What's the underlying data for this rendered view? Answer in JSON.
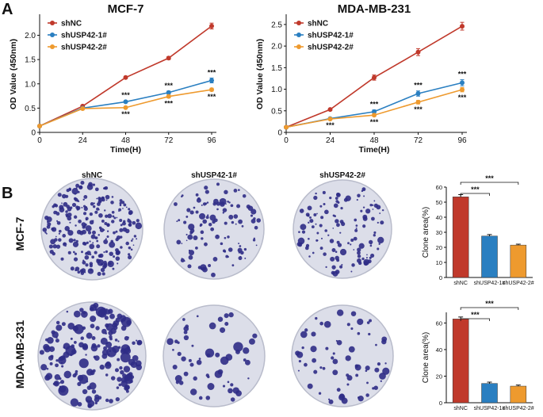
{
  "colors": {
    "shNC": "#c0392b",
    "shUSP42-1#": "#2a7fc1",
    "shUSP42-2#": "#ee9a2e",
    "colony": "#2f2c86",
    "dish": "#dcdee9",
    "dishEdge": "#b9bccb"
  },
  "panels": {
    "a": "A",
    "b": "B"
  },
  "chart_data": [
    {
      "type": "line",
      "title": "MCF-7",
      "xlabel": "Time(H)",
      "ylabel": "OD Value (450nm)",
      "x": [
        0,
        24,
        48,
        72,
        96
      ],
      "ylim": [
        0,
        2.4
      ],
      "yticks": [
        0,
        0.5,
        1.0,
        1.5,
        2.0
      ],
      "ytick_labels": [
        "0",
        "0.5",
        "1.0",
        "1.5",
        "2.0"
      ],
      "series": [
        {
          "name": "shNC",
          "values": [
            0.13,
            0.54,
            1.13,
            1.53,
            2.19
          ],
          "err": [
            0.01,
            0.02,
            0.02,
            0.03,
            0.06
          ]
        },
        {
          "name": "shUSP42-1#",
          "values": [
            0.13,
            0.5,
            0.63,
            0.82,
            1.07
          ],
          "err": [
            0.01,
            0.02,
            0.02,
            0.03,
            0.05
          ]
        },
        {
          "name": "shUSP42-2#",
          "values": [
            0.13,
            0.49,
            0.51,
            0.74,
            0.88
          ],
          "err": [
            0.01,
            0.02,
            0.02,
            0.03,
            0.03
          ]
        }
      ],
      "annotations": [
        {
          "x": 48,
          "series": "shUSP42-1#",
          "pos": "above",
          "text": "***"
        },
        {
          "x": 48,
          "series": "shUSP42-2#",
          "pos": "below",
          "text": "***"
        },
        {
          "x": 72,
          "series": "shUSP42-1#",
          "pos": "above",
          "text": "***"
        },
        {
          "x": 72,
          "series": "shUSP42-2#",
          "pos": "below",
          "text": "***"
        },
        {
          "x": 96,
          "series": "shUSP42-1#",
          "pos": "above",
          "text": "***"
        },
        {
          "x": 96,
          "series": "shUSP42-2#",
          "pos": "below",
          "text": "***"
        }
      ]
    },
    {
      "type": "line",
      "title": "MDA-MB-231",
      "xlabel": "Time(H)",
      "ylabel": "OD Value (450nm)",
      "x": [
        0,
        24,
        48,
        72,
        96
      ],
      "ylim": [
        0,
        2.7
      ],
      "yticks": [
        0,
        0.5,
        1.0,
        1.5,
        2.0,
        2.5
      ],
      "ytick_labels": [
        "0",
        "0.5",
        "1.0",
        "1.5",
        "2.0",
        "2.5"
      ],
      "series": [
        {
          "name": "shNC",
          "values": [
            0.12,
            0.53,
            1.27,
            1.86,
            2.46
          ],
          "err": [
            0.01,
            0.02,
            0.06,
            0.08,
            0.09
          ]
        },
        {
          "name": "shUSP42-1#",
          "values": [
            0.12,
            0.32,
            0.48,
            0.9,
            1.15
          ],
          "err": [
            0.01,
            0.02,
            0.04,
            0.06,
            0.07
          ]
        },
        {
          "name": "shUSP42-2#",
          "values": [
            0.12,
            0.31,
            0.4,
            0.7,
            0.99
          ],
          "err": [
            0.01,
            0.02,
            0.03,
            0.04,
            0.05
          ]
        }
      ],
      "annotations": [
        {
          "x": 24,
          "series": "shUSP42-2#",
          "pos": "below",
          "text": "***"
        },
        {
          "x": 48,
          "series": "shUSP42-1#",
          "pos": "above",
          "text": "***"
        },
        {
          "x": 48,
          "series": "shUSP42-2#",
          "pos": "below",
          "text": "***"
        },
        {
          "x": 72,
          "series": "shUSP42-1#",
          "pos": "above",
          "text": "***"
        },
        {
          "x": 72,
          "series": "shUSP42-2#",
          "pos": "below",
          "text": "***"
        },
        {
          "x": 96,
          "series": "shUSP42-1#",
          "pos": "above",
          "text": "***"
        },
        {
          "x": 96,
          "series": "shUSP42-2#",
          "pos": "below",
          "text": "***"
        }
      ]
    },
    {
      "type": "bar",
      "row": "MCF-7",
      "ylabel": "Clone area(%)",
      "ylim": [
        0,
        60
      ],
      "yticks": [
        0,
        10,
        20,
        30,
        40,
        50,
        60
      ],
      "categories": [
        "shNC",
        "shUSP42-1#",
        "shUSP42-2#"
      ],
      "values": [
        53.5,
        27.5,
        21.5
      ],
      "err": [
        1.5,
        1.0,
        0.6
      ],
      "significance": [
        {
          "from": "shNC",
          "to": "shUSP42-1#",
          "text": "***"
        },
        {
          "from": "shNC",
          "to": "shUSP42-2#",
          "text": "***"
        }
      ]
    },
    {
      "type": "bar",
      "row": "MDA-MB-231",
      "ylabel": "Clone area(%)",
      "ylim": [
        0,
        68
      ],
      "yticks": [
        0,
        20,
        40,
        60
      ],
      "categories": [
        "shNC",
        "shUSP42-1#",
        "shUSP42-2#"
      ],
      "values": [
        63,
        14.5,
        12.5
      ],
      "err": [
        1.5,
        1.0,
        0.8
      ],
      "significance": [
        {
          "from": "shNC",
          "to": "shUSP42-1#",
          "text": "***"
        },
        {
          "from": "shNC",
          "to": "shUSP42-2#",
          "text": "***"
        }
      ]
    }
  ],
  "colony_assay": {
    "columns": [
      "shNC",
      "shUSP42-1#",
      "shUSP42-2#"
    ],
    "rows": [
      "MCF-7",
      "MDA-MB-231"
    ],
    "density": [
      [
        1.0,
        0.45,
        0.5
      ],
      [
        1.0,
        0.3,
        0.35
      ]
    ]
  }
}
